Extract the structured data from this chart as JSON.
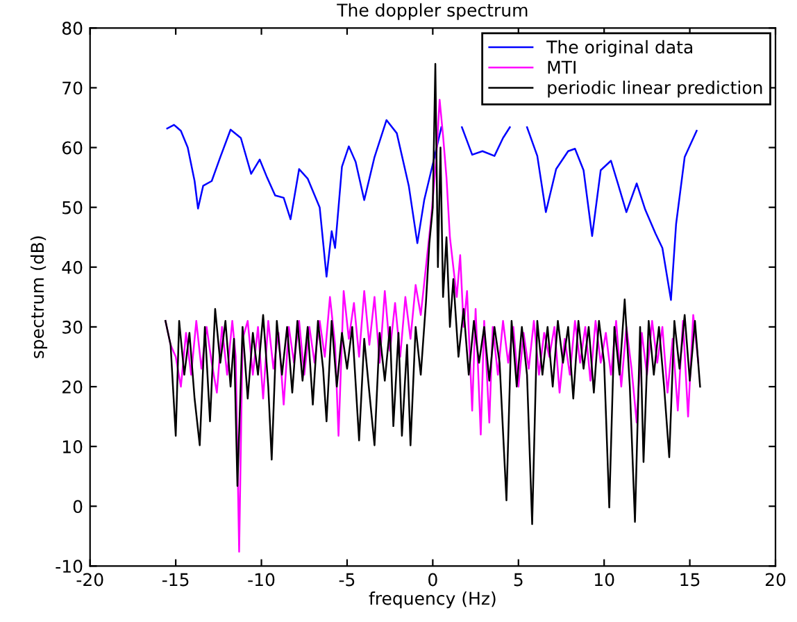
{
  "chart_data": {
    "type": "line",
    "title": "The doppler spectrum",
    "xlabel": "frequency (Hz)",
    "ylabel": "spectrum (dB)",
    "xlim": [
      -20,
      20
    ],
    "ylim": [
      -10,
      80
    ],
    "xticks": [
      -20,
      -15,
      -10,
      -5,
      0,
      5,
      10,
      15,
      20
    ],
    "yticks": [
      -10,
      0,
      10,
      20,
      30,
      40,
      50,
      60,
      70,
      80
    ],
    "grid": false,
    "legend": "top right",
    "marker": "none",
    "line_style": "solid",
    "series": [
      {
        "name": "The original data",
        "color": "#0000ff",
        "x": [
          -15.5,
          -15.1,
          -14.7,
          -14.3,
          -13.9,
          -13.7,
          -13.4,
          -12.9,
          -12.4,
          -11.8,
          -11.2,
          -10.6,
          -10.1,
          -9.7,
          -9.2,
          -8.7,
          -8.3,
          -7.8,
          -7.3,
          -6.6,
          -6.2,
          -5.9,
          -5.7,
          -5.3,
          -4.9,
          -4.5,
          -4.0,
          -3.4,
          -2.7,
          -2.1,
          -1.4,
          -0.9,
          -0.5,
          0.1,
          0.5,
          1.1,
          1.7,
          2.3,
          2.9,
          3.6,
          4.1,
          4.5,
          5.0,
          5.5,
          6.1,
          6.6,
          7.2,
          7.9,
          8.3,
          8.8,
          9.3,
          9.8,
          10.4,
          10.8,
          11.3,
          11.9,
          12.4,
          13.0,
          13.4,
          13.9,
          14.2,
          14.7,
          15.4
        ],
        "values": [
          63.2,
          63.8,
          62.8,
          60,
          54.4,
          49.8,
          53.6,
          54.4,
          58.4,
          63,
          61.6,
          55.6,
          58,
          55.2,
          52,
          51.6,
          48,
          56.4,
          54.8,
          50,
          38.4,
          46,
          43.2,
          56.8,
          60.2,
          57.6,
          51.2,
          58.4,
          64.6,
          62.4,
          53.6,
          44,
          51.2,
          58.4,
          63.4,
          null,
          63.4,
          58.8,
          59.4,
          58.6,
          61.6,
          63.4,
          null,
          63.4,
          58.6,
          49.2,
          56.4,
          59.4,
          59.8,
          56.2,
          45.2,
          56.2,
          57.8,
          54,
          49.2,
          54,
          49.6,
          45.6,
          43.2,
          34.5,
          47.2,
          58.4,
          62.8
        ]
      },
      {
        "name": "MTI",
        "color": "#ff00ff",
        "x": [
          -15.6,
          -15.3,
          -15.0,
          -14.7,
          -14.4,
          -14.1,
          -13.8,
          -13.5,
          -13.2,
          -12.9,
          -12.6,
          -12.3,
          -12.0,
          -11.7,
          -11.5,
          -11.3,
          -11.1,
          -10.8,
          -10.5,
          -10.2,
          -9.9,
          -9.6,
          -9.3,
          -9.0,
          -8.7,
          -8.4,
          -8.1,
          -7.8,
          -7.5,
          -7.2,
          -6.9,
          -6.6,
          -6.3,
          -6.0,
          -5.7,
          -5.5,
          -5.2,
          -4.9,
          -4.6,
          -4.3,
          -4.0,
          -3.7,
          -3.4,
          -3.1,
          -2.8,
          -2.5,
          -2.2,
          -1.9,
          -1.6,
          -1.3,
          -1.0,
          -0.7,
          -0.4,
          -0.1,
          0.2,
          0.4,
          0.6,
          0.8,
          1.0,
          1.2,
          1.4,
          1.6,
          1.8,
          2.0,
          2.3,
          2.5,
          2.8,
          3.0,
          3.3,
          3.5,
          3.8,
          4.1,
          4.4,
          4.7,
          5.0,
          5.3,
          5.6,
          5.9,
          6.2,
          6.5,
          6.8,
          7.1,
          7.4,
          7.7,
          8.0,
          8.3,
          8.6,
          8.9,
          9.2,
          9.5,
          9.8,
          10.1,
          10.4,
          10.7,
          11.0,
          11.3,
          11.6,
          11.9,
          12.2,
          12.5,
          12.8,
          13.1,
          13.4,
          13.7,
          14.0,
          14.3,
          14.6,
          14.9,
          15.2,
          15.5
        ],
        "values": [
          31,
          27,
          25,
          20,
          29,
          22,
          31,
          23,
          30,
          24,
          19,
          30,
          22,
          31,
          25,
          -7.6,
          28,
          31,
          22,
          30,
          18,
          31,
          23,
          29,
          17,
          30,
          24,
          31,
          22,
          30,
          24,
          31,
          25,
          35,
          27,
          11.8,
          36,
          28,
          34,
          25,
          36,
          27,
          35,
          24,
          36,
          26,
          34,
          25,
          35,
          28,
          37,
          32,
          40,
          48,
          58,
          68,
          62,
          55,
          45,
          40,
          35,
          42,
          30,
          36,
          16,
          33,
          12,
          31,
          14,
          30,
          22,
          31,
          24,
          30,
          20,
          29,
          23,
          31,
          22,
          29,
          25,
          30,
          19,
          28,
          22,
          31,
          24,
          30,
          21,
          31,
          24,
          29,
          22,
          31,
          20,
          30,
          23,
          14,
          29,
          22,
          31,
          24,
          30,
          19,
          28,
          16,
          31,
          15,
          32,
          24
        ]
      },
      {
        "name": "periodic linear prediction",
        "color": "#000000",
        "x": [
          -15.6,
          -15.3,
          -15.0,
          -14.8,
          -14.5,
          -14.2,
          -13.9,
          -13.6,
          -13.3,
          -13.0,
          -12.7,
          -12.4,
          -12.1,
          -11.8,
          -11.6,
          -11.4,
          -11.1,
          -10.8,
          -10.5,
          -10.2,
          -9.9,
          -9.6,
          -9.4,
          -9.1,
          -8.8,
          -8.5,
          -8.2,
          -7.9,
          -7.6,
          -7.3,
          -7.0,
          -6.7,
          -6.4,
          -6.2,
          -5.9,
          -5.6,
          -5.3,
          -5.0,
          -4.7,
          -4.3,
          -4.0,
          -3.7,
          -3.4,
          -3.1,
          -2.8,
          -2.5,
          -2.3,
          -2.0,
          -1.8,
          -1.5,
          -1.3,
          -1.0,
          -0.7,
          -0.4,
          -0.2,
          0.0,
          0.15,
          0.3,
          0.45,
          0.6,
          0.8,
          1.0,
          1.2,
          1.5,
          1.8,
          2.1,
          2.4,
          2.7,
          3.0,
          3.3,
          3.6,
          3.9,
          4.3,
          4.6,
          4.9,
          5.2,
          5.5,
          5.8,
          6.1,
          6.4,
          6.7,
          7.0,
          7.3,
          7.6,
          7.9,
          8.2,
          8.5,
          8.8,
          9.1,
          9.4,
          9.7,
          10.0,
          10.3,
          10.6,
          10.9,
          11.2,
          11.5,
          11.8,
          12.1,
          12.3,
          12.6,
          12.9,
          13.2,
          13.5,
          13.8,
          14.1,
          14.4,
          14.7,
          15.0,
          15.3,
          15.6
        ],
        "values": [
          31,
          27,
          11.8,
          31,
          22,
          29,
          18,
          10.2,
          30,
          14.2,
          33,
          24,
          31,
          20,
          28,
          3.4,
          30,
          18,
          29,
          22,
          32,
          20,
          7.8,
          31,
          22,
          30,
          19,
          31,
          21,
          30,
          17,
          31,
          23,
          14.2,
          31,
          20,
          29,
          23,
          30,
          11,
          28,
          19,
          10.2,
          29,
          21,
          30,
          13.4,
          29,
          11.8,
          27,
          10.2,
          30,
          22,
          34,
          44,
          50,
          74,
          40,
          60,
          35,
          45,
          30,
          38,
          25,
          33,
          22,
          31,
          24,
          30,
          21,
          30,
          24,
          1,
          31,
          20,
          30,
          22,
          -3,
          31,
          22,
          30,
          20,
          31,
          24,
          30,
          18,
          31,
          23,
          30,
          19,
          31,
          24,
          -0.2,
          30,
          22,
          34.6,
          20,
          -2.6,
          30,
          7.4,
          31,
          22,
          30,
          20,
          8.2,
          31,
          23,
          32,
          21,
          31,
          20
        ]
      }
    ]
  }
}
